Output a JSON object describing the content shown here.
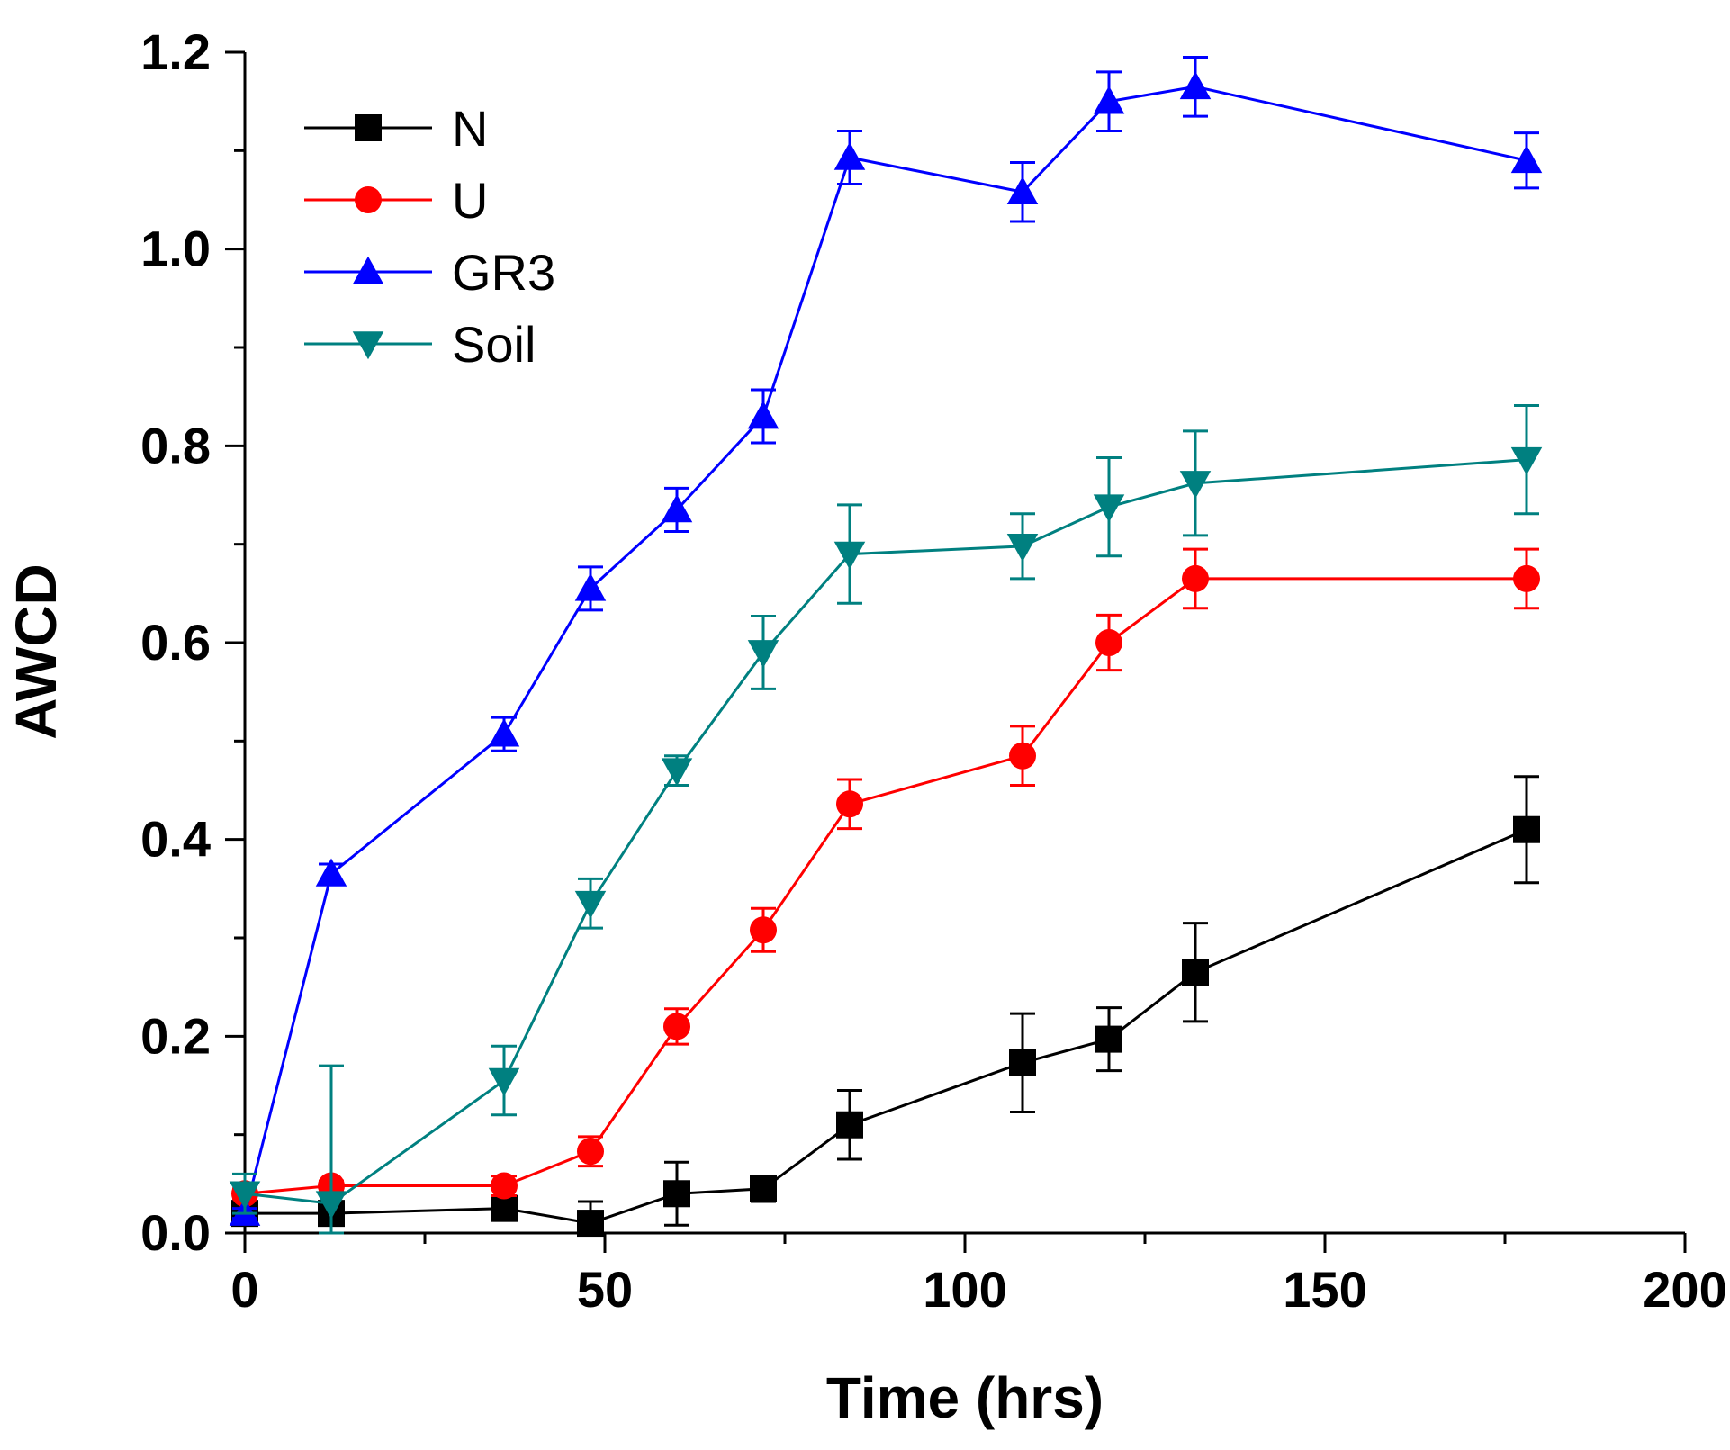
{
  "chart_data": {
    "type": "line",
    "title": "",
    "xlabel": "Time (hrs)",
    "ylabel": "AWCD",
    "xlim": [
      0,
      200
    ],
    "ylim": [
      0,
      1.2
    ],
    "xticks": [
      0,
      50,
      100,
      150,
      200
    ],
    "yticks": [
      0.0,
      0.2,
      0.4,
      0.6,
      0.8,
      1.0,
      1.2
    ],
    "xtick_labels": [
      "0",
      "50",
      "100",
      "150",
      "200"
    ],
    "ytick_labels": [
      "0.0",
      "0.2",
      "0.4",
      "0.6",
      "0.8",
      "1.0",
      "1.2"
    ],
    "legend_position": "top-left",
    "grid": false,
    "x": [
      0,
      12,
      36,
      48,
      60,
      72,
      84,
      108,
      120,
      132,
      178
    ],
    "series": [
      {
        "name": "N",
        "color": "#000000",
        "marker": "square",
        "values": [
          0.02,
          0.02,
          0.025,
          0.01,
          0.04,
          0.045,
          0.11,
          0.173,
          0.197,
          0.265,
          0.41
        ],
        "errors": [
          0.005,
          0.01,
          0.01,
          0.022,
          0.032,
          0.013,
          0.035,
          0.05,
          0.032,
          0.05,
          0.054
        ]
      },
      {
        "name": "U",
        "color": "#ff0000",
        "marker": "circle",
        "values": [
          0.04,
          0.048,
          0.048,
          0.083,
          0.21,
          0.308,
          0.436,
          0.485,
          0.6,
          0.665,
          0.665
        ],
        "errors": [
          0.005,
          0.005,
          0.01,
          0.015,
          0.018,
          0.022,
          0.025,
          0.03,
          0.028,
          0.03,
          0.03
        ]
      },
      {
        "name": "GR3",
        "color": "#0000ff",
        "marker": "triangle-up",
        "values": [
          0.02,
          0.365,
          0.507,
          0.655,
          0.735,
          0.83,
          1.093,
          1.058,
          1.15,
          1.165,
          1.09
        ],
        "errors": [
          0.005,
          0.01,
          0.017,
          0.022,
          0.022,
          0.027,
          0.027,
          0.03,
          0.03,
          0.03,
          0.028
        ]
      },
      {
        "name": "Soil",
        "color": "#008080",
        "marker": "triangle-down",
        "values": [
          0.04,
          0.03,
          0.155,
          0.335,
          0.47,
          0.59,
          0.69,
          0.698,
          0.738,
          0.762,
          0.786
        ],
        "errors": [
          0.02,
          0.14,
          0.035,
          0.025,
          0.015,
          0.037,
          0.05,
          0.033,
          0.05,
          0.053,
          0.055
        ]
      }
    ]
  }
}
